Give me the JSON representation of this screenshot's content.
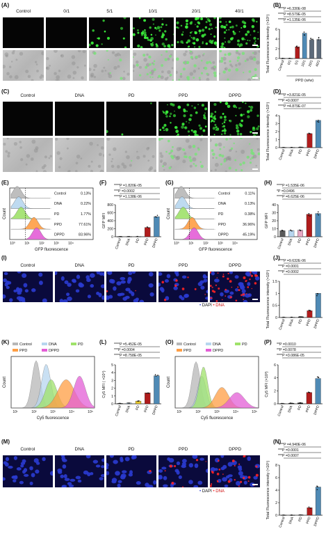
{
  "colors": {
    "control": "#b7b7b7",
    "dna": "#b7d6ef",
    "pd": "#9fe26a",
    "ppd": "#ff9e44",
    "dppd": "#e45ed6",
    "bar_ppd": "#b01c1c",
    "bar_dppd": "#4f8ab5",
    "gfp": "#3cf03c",
    "dapi": "#2a3bd1",
    "dna_stain": "#ff2222"
  },
  "panel_A": {
    "label": "(A)",
    "columns": [
      "Control",
      "0/1",
      "5/1",
      "10/1",
      "20/1",
      "40/1"
    ],
    "gfp_density": [
      0,
      0,
      0.15,
      0.55,
      0.7,
      0.6
    ]
  },
  "panel_B": {
    "label": "(B)",
    "ylabel": "Total Fluorescence intensity (×10⁵)",
    "xlabel": "PPD (w/w)",
    "sig": [
      "****P =6.330E-08",
      "****P =8.579E-05",
      "****P =1.135E-06"
    ],
    "chart_data": {
      "type": "bar",
      "categories": [
        "Control",
        "0/1",
        "5/1",
        "10/1",
        "20/1",
        "40/1"
      ],
      "values": [
        0.02,
        0.02,
        2.4,
        5.2,
        3.8,
        3.9
      ],
      "ylim": [
        0,
        6
      ],
      "yticks": [
        0,
        2,
        4,
        6
      ],
      "colors": [
        "#111111",
        "#111111",
        "#b01c1c",
        "#4f8ab5",
        "#5c6a7a",
        "#5c6a7a"
      ]
    }
  },
  "panel_C": {
    "label": "(C)",
    "columns": [
      "Control",
      "DNA",
      "PD",
      "PPD",
      "DPPD"
    ],
    "gfp_density": [
      0,
      0,
      0.03,
      0.65,
      0.8
    ]
  },
  "panel_D": {
    "label": "(D)",
    "ylabel": "Total Fluorescence intensity (×10⁵)",
    "sig": [
      "****P =3.821E-05",
      "***P =0.0007",
      "****P =4.879E-07"
    ],
    "chart_data": {
      "type": "bar",
      "categories": [
        "Control",
        "DNA",
        "PD",
        "PPD",
        "DPPD"
      ],
      "values": [
        0.02,
        0.02,
        0.05,
        1.75,
        3.4
      ],
      "ylim": [
        0,
        4
      ],
      "yticks": [
        0,
        1,
        2,
        3,
        4
      ],
      "colors": [
        "#111111",
        "#111111",
        "#111111",
        "#b01c1c",
        "#4f8ab5"
      ]
    }
  },
  "panel_E": {
    "label": "(E)",
    "xlabel": "GFP fluorescence",
    "ylabel": "Count",
    "rows": [
      {
        "name": "Control",
        "pct": "0.13%"
      },
      {
        "name": "DNA",
        "pct": "0.22%"
      },
      {
        "name": "PD",
        "pct": "1.77%"
      },
      {
        "name": "PPD",
        "pct": "77.61%"
      },
      {
        "name": "DPPD",
        "pct": "83.96%"
      }
    ],
    "xticks": [
      "10⁰",
      "10¹",
      "10²",
      "10³",
      "10⁴"
    ]
  },
  "panel_F": {
    "label": "(F)",
    "ylabel": "GFP MFI",
    "sig": [
      "****P =1.820E-05",
      "***P =0.0002",
      "****P =1.138E-06"
    ],
    "chart_data": {
      "type": "bar",
      "categories": [
        "Control",
        "DNA",
        "PD",
        "PPD",
        "DPPD"
      ],
      "values": [
        3,
        4,
        6,
        230,
        500
      ],
      "ylim": [
        0,
        800
      ],
      "yticks": [
        0,
        200,
        400,
        600,
        800
      ],
      "colors": [
        "#111111",
        "#111111",
        "#111111",
        "#b01c1c",
        "#4f8ab5"
      ]
    }
  },
  "panel_G": {
    "label": "(G)",
    "xlabel": "GFP fluorescence",
    "ylabel": "Count",
    "rows": [
      {
        "name": "Control",
        "pct": "0.11%"
      },
      {
        "name": "DNA",
        "pct": "0.13%"
      },
      {
        "name": "PD",
        "pct": "0.38%"
      },
      {
        "name": "PPD",
        "pct": "36.96%"
      },
      {
        "name": "DPPD",
        "pct": "45.19%"
      }
    ],
    "xticks": [
      "10⁰",
      "10¹",
      "10²",
      "10³",
      "10⁴"
    ]
  },
  "panel_H": {
    "label": "(H)",
    "ylabel": "GFP MFI",
    "sig": [
      "****P =1.535E-06",
      "*P =0.0496",
      "****P =6.625E-06"
    ],
    "chart_data": {
      "type": "bar",
      "categories": [
        "Control",
        "DNA",
        "PD",
        "PPD",
        "DPPD"
      ],
      "values": [
        7.5,
        7.8,
        8.2,
        28,
        29
      ],
      "ylim": [
        0,
        40
      ],
      "yticks": [
        0,
        10,
        20,
        30,
        40
      ],
      "colors": [
        "#5a5a5a",
        "#b7d6ef",
        "#e7a8c3",
        "#b01c1c",
        "#4f8ab5"
      ]
    }
  },
  "panel_I": {
    "label": "(I)",
    "columns": [
      "Control",
      "DNA",
      "PD",
      "PPD",
      "DPPD"
    ],
    "red_density": [
      0,
      0,
      0.03,
      0.12,
      0.6
    ],
    "legend_dapi": "DAPI",
    "legend_dna": "DNA"
  },
  "panel_J": {
    "label": "(J)",
    "ylabel": "Total Fluorescence intensity (×10⁵)",
    "sig": [
      "****P =9.632E-06",
      "***P =0.0001",
      "***P =0.0002"
    ],
    "chart_data": {
      "type": "bar",
      "categories": [
        "Control",
        "DNA",
        "PD",
        "PPD",
        "DPPD"
      ],
      "values": [
        0.01,
        0.01,
        0.03,
        0.28,
        1.0
      ],
      "ylim": [
        0,
        1.5
      ],
      "yticks": [
        0.0,
        0.5,
        1.0,
        1.5
      ],
      "colors": [
        "#111111",
        "#111111",
        "#111111",
        "#b01c1c",
        "#4f8ab5"
      ]
    }
  },
  "panel_K": {
    "label": "(K)",
    "xlabel": "Cy5 fluorescence",
    "ylabel": "Count",
    "legend": [
      "Control",
      "DNA",
      "PD",
      "PPD",
      "DPPD"
    ],
    "xticks": [
      "10¹",
      "10²",
      "10³",
      "10⁴",
      "10⁵"
    ]
  },
  "panel_L": {
    "label": "(L)",
    "ylabel": "Cy5 MFI ( ×10⁴)",
    "sig": [
      "****P =5.452E-05",
      "***P =0.0004",
      "****P =8.758E-05"
    ],
    "chart_data": {
      "type": "bar",
      "categories": [
        "Control",
        "DNA",
        "PD",
        "PPD",
        "DPPD"
      ],
      "values": [
        0.05,
        0.1,
        0.35,
        1.4,
        3.6
      ],
      "ylim": [
        0,
        5
      ],
      "yticks": [
        0,
        1,
        2,
        3,
        4,
        5
      ],
      "colors": [
        "#111111",
        "#b7d6ef",
        "#e6c82e",
        "#b01c1c",
        "#4f8ab5"
      ]
    }
  },
  "panel_O": {
    "label": "(O)",
    "xlabel": "Cy5 fluorescence",
    "ylabel": "Count",
    "legend": [
      "Control",
      "DNA",
      "PD",
      "PPD",
      "DPPD"
    ],
    "xticks": [
      "10¹",
      "10²",
      "10³",
      "10⁴",
      "10⁵"
    ]
  },
  "panel_P": {
    "label": "(P)",
    "ylabel": "Cy5 MFI (×10³)",
    "sig": [
      "**P =0.0010",
      "**P =0.0078",
      "****P =3.086E-05"
    ],
    "chart_data": {
      "type": "bar",
      "categories": [
        "Control",
        "DNA",
        "PD",
        "PPD",
        "DPPD"
      ],
      "values": [
        0.05,
        0.1,
        0.15,
        1.75,
        3.9
      ],
      "ylim": [
        0,
        6
      ],
      "yticks": [
        0,
        2,
        4,
        6
      ],
      "colors": [
        "#111111",
        "#111111",
        "#111111",
        "#b01c1c",
        "#4f8ab5"
      ]
    }
  },
  "panel_M": {
    "label": "(M)",
    "columns": [
      "Control",
      "DNA",
      "PD",
      "PPD",
      "DPPD"
    ],
    "red_density": [
      0,
      0,
      0.02,
      0.1,
      0.35
    ],
    "legend_dapi": "DAPI",
    "legend_dna": "DNA"
  },
  "panel_N": {
    "label": "(N)",
    "ylabel": "Total Fluorescence intensity (×10⁵)",
    "sig": [
      "****P =4.940E-06",
      "***P =0.0001",
      "***P =0.0007"
    ],
    "chart_data": {
      "type": "bar",
      "categories": [
        "Control",
        "DNA",
        "PD",
        "PPD",
        "DPPD"
      ],
      "values": [
        0.02,
        0.02,
        0.05,
        1.2,
        4.5
      ],
      "ylim": [
        0,
        8
      ],
      "yticks": [
        0,
        2,
        4,
        6,
        8
      ],
      "colors": [
        "#111111",
        "#111111",
        "#111111",
        "#b01c1c",
        "#4f8ab5"
      ]
    }
  }
}
